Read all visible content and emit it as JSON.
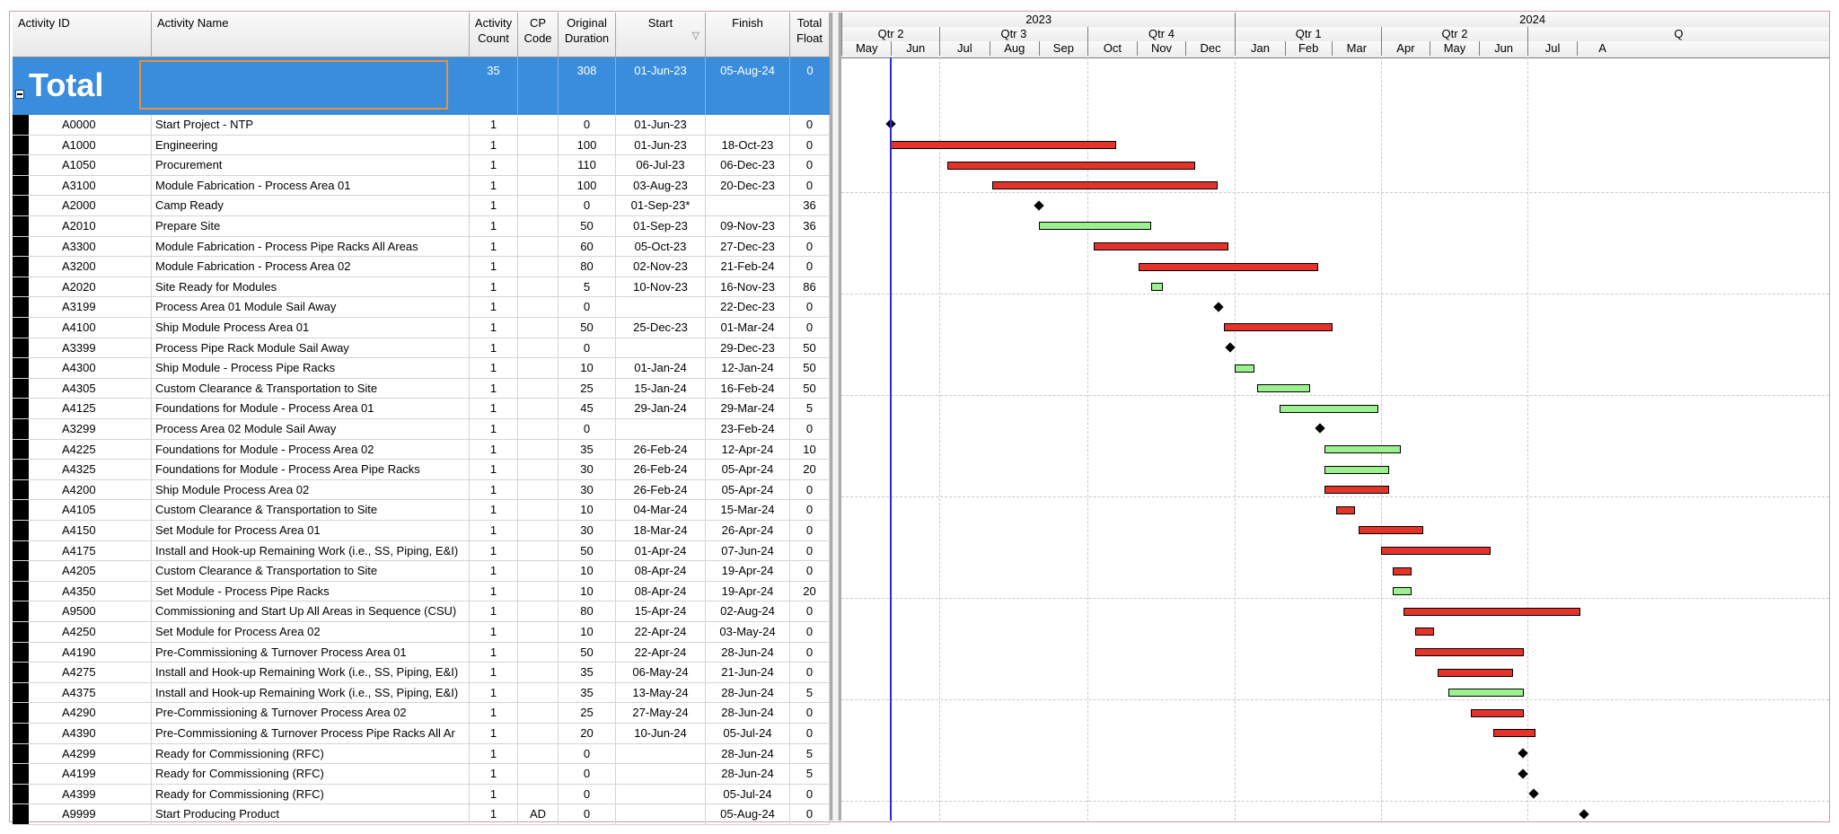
{
  "columns": {
    "id": "Activity ID",
    "name": "Activity Name",
    "count": "Activity Count",
    "cp": "CP Code",
    "duration": "Original Duration",
    "start": "Start",
    "finish": "Finish",
    "float": "Total Float",
    "start_sort_icon": "▽"
  },
  "total": {
    "label": "Total",
    "count": "35",
    "duration": "308",
    "start": "01-Jun-23",
    "finish": "05-Aug-24",
    "float": "0"
  },
  "rows": [
    {
      "id": "A0000",
      "name": "Start Project - NTP",
      "count": "1",
      "cp": "",
      "dur": "0",
      "start": "01-Jun-23",
      "finish": "",
      "float": "0"
    },
    {
      "id": "A1000",
      "name": "Engineering",
      "count": "1",
      "cp": "",
      "dur": "100",
      "start": "01-Jun-23",
      "finish": "18-Oct-23",
      "float": "0"
    },
    {
      "id": "A1050",
      "name": "Procurement",
      "count": "1",
      "cp": "",
      "dur": "110",
      "start": "06-Jul-23",
      "finish": "06-Dec-23",
      "float": "0"
    },
    {
      "id": "A3100",
      "name": "Module Fabrication - Process Area 01",
      "count": "1",
      "cp": "",
      "dur": "100",
      "start": "03-Aug-23",
      "finish": "20-Dec-23",
      "float": "0"
    },
    {
      "id": "A2000",
      "name": "Camp Ready",
      "count": "1",
      "cp": "",
      "dur": "0",
      "start": "01-Sep-23*",
      "finish": "",
      "float": "36"
    },
    {
      "id": "A2010",
      "name": "Prepare Site",
      "count": "1",
      "cp": "",
      "dur": "50",
      "start": "01-Sep-23",
      "finish": "09-Nov-23",
      "float": "36"
    },
    {
      "id": "A3300",
      "name": "Module Fabrication - Process Pipe Racks All Areas",
      "count": "1",
      "cp": "",
      "dur": "60",
      "start": "05-Oct-23",
      "finish": "27-Dec-23",
      "float": "0"
    },
    {
      "id": "A3200",
      "name": "Module Fabrication - Process Area 02",
      "count": "1",
      "cp": "",
      "dur": "80",
      "start": "02-Nov-23",
      "finish": "21-Feb-24",
      "float": "0"
    },
    {
      "id": "A2020",
      "name": "Site Ready for Modules",
      "count": "1",
      "cp": "",
      "dur": "5",
      "start": "10-Nov-23",
      "finish": "16-Nov-23",
      "float": "86"
    },
    {
      "id": "A3199",
      "name": "Process Area 01 Module Sail Away",
      "count": "1",
      "cp": "",
      "dur": "0",
      "start": "",
      "finish": "22-Dec-23",
      "float": "0"
    },
    {
      "id": "A4100",
      "name": "Ship Module Process Area 01",
      "count": "1",
      "cp": "",
      "dur": "50",
      "start": "25-Dec-23",
      "finish": "01-Mar-24",
      "float": "0"
    },
    {
      "id": "A3399",
      "name": "Process Pipe Rack Module Sail Away",
      "count": "1",
      "cp": "",
      "dur": "0",
      "start": "",
      "finish": "29-Dec-23",
      "float": "50"
    },
    {
      "id": "A4300",
      "name": "Ship Module - Process Pipe Racks",
      "count": "1",
      "cp": "",
      "dur": "10",
      "start": "01-Jan-24",
      "finish": "12-Jan-24",
      "float": "50"
    },
    {
      "id": "A4305",
      "name": "Custom Clearance & Transportation to Site",
      "count": "1",
      "cp": "",
      "dur": "25",
      "start": "15-Jan-24",
      "finish": "16-Feb-24",
      "float": "50"
    },
    {
      "id": "A4125",
      "name": "Foundations for Module - Process Area 01",
      "count": "1",
      "cp": "",
      "dur": "45",
      "start": "29-Jan-24",
      "finish": "29-Mar-24",
      "float": "5"
    },
    {
      "id": "A3299",
      "name": "Process Area 02 Module Sail Away",
      "count": "1",
      "cp": "",
      "dur": "0",
      "start": "",
      "finish": "23-Feb-24",
      "float": "0"
    },
    {
      "id": "A4225",
      "name": "Foundations for Module - Process Area 02",
      "count": "1",
      "cp": "",
      "dur": "35",
      "start": "26-Feb-24",
      "finish": "12-Apr-24",
      "float": "10"
    },
    {
      "id": "A4325",
      "name": "Foundations for Module - Process Area Pipe Racks",
      "count": "1",
      "cp": "",
      "dur": "30",
      "start": "26-Feb-24",
      "finish": "05-Apr-24",
      "float": "20"
    },
    {
      "id": "A4200",
      "name": "Ship Module Process Area 02",
      "count": "1",
      "cp": "",
      "dur": "30",
      "start": "26-Feb-24",
      "finish": "05-Apr-24",
      "float": "0"
    },
    {
      "id": "A4105",
      "name": "Custom Clearance & Transportation to Site",
      "count": "1",
      "cp": "",
      "dur": "10",
      "start": "04-Mar-24",
      "finish": "15-Mar-24",
      "float": "0"
    },
    {
      "id": "A4150",
      "name": "Set Module for Process Area 01",
      "count": "1",
      "cp": "",
      "dur": "30",
      "start": "18-Mar-24",
      "finish": "26-Apr-24",
      "float": "0"
    },
    {
      "id": "A4175",
      "name": "Install and Hook-up Remaining Work (i.e., SS, Piping, E&I)",
      "count": "1",
      "cp": "",
      "dur": "50",
      "start": "01-Apr-24",
      "finish": "07-Jun-24",
      "float": "0"
    },
    {
      "id": "A4205",
      "name": "Custom Clearance & Transportation to Site",
      "count": "1",
      "cp": "",
      "dur": "10",
      "start": "08-Apr-24",
      "finish": "19-Apr-24",
      "float": "0"
    },
    {
      "id": "A4350",
      "name": "Set Module - Process Pipe Racks",
      "count": "1",
      "cp": "",
      "dur": "10",
      "start": "08-Apr-24",
      "finish": "19-Apr-24",
      "float": "20"
    },
    {
      "id": "A9500",
      "name": "Commissioning and Start Up All Areas in Sequence (CSU)",
      "count": "1",
      "cp": "",
      "dur": "80",
      "start": "15-Apr-24",
      "finish": "02-Aug-24",
      "float": "0"
    },
    {
      "id": "A4250",
      "name": "Set Module for Process Area 02",
      "count": "1",
      "cp": "",
      "dur": "10",
      "start": "22-Apr-24",
      "finish": "03-May-24",
      "float": "0"
    },
    {
      "id": "A4190",
      "name": "Pre-Commissioning & Turnover Process Area 01",
      "count": "1",
      "cp": "",
      "dur": "50",
      "start": "22-Apr-24",
      "finish": "28-Jun-24",
      "float": "0"
    },
    {
      "id": "A4275",
      "name": "Install and Hook-up Remaining Work (i.e., SS, Piping, E&I)",
      "count": "1",
      "cp": "",
      "dur": "35",
      "start": "06-May-24",
      "finish": "21-Jun-24",
      "float": "0"
    },
    {
      "id": "A4375",
      "name": "Install and Hook-up Remaining Work (i.e., SS, Piping, E&I)",
      "count": "1",
      "cp": "",
      "dur": "35",
      "start": "13-May-24",
      "finish": "28-Jun-24",
      "float": "5"
    },
    {
      "id": "A4290",
      "name": "Pre-Commissioning & Turnover Process Area 02",
      "count": "1",
      "cp": "",
      "dur": "25",
      "start": "27-May-24",
      "finish": "28-Jun-24",
      "float": "0"
    },
    {
      "id": "A4390",
      "name": "Pre-Commissioning & Turnover Process Pipe Racks All Ar",
      "count": "1",
      "cp": "",
      "dur": "20",
      "start": "10-Jun-24",
      "finish": "05-Jul-24",
      "float": "0"
    },
    {
      "id": "A4299",
      "name": "Ready for Commissioning (RFC)",
      "count": "1",
      "cp": "",
      "dur": "0",
      "start": "",
      "finish": "28-Jun-24",
      "float": "5"
    },
    {
      "id": "A4199",
      "name": "Ready for Commissioning (RFC)",
      "count": "1",
      "cp": "",
      "dur": "0",
      "start": "",
      "finish": "28-Jun-24",
      "float": "5"
    },
    {
      "id": "A4399",
      "name": "Ready for Commissioning (RFC)",
      "count": "1",
      "cp": "",
      "dur": "0",
      "start": "",
      "finish": "05-Jul-24",
      "float": "0"
    },
    {
      "id": "A9999",
      "name": "Start Producing Product",
      "count": "1",
      "cp": "AD",
      "dur": "0",
      "start": "",
      "finish": "05-Aug-24",
      "float": "0"
    }
  ],
  "timescale": {
    "years": [
      "2023",
      "2024"
    ],
    "quarters": [
      "Qtr 2",
      "Qtr 3",
      "Qtr 4",
      "Qtr 1",
      "Qtr 2",
      "Q"
    ],
    "months": [
      "May",
      "Jun",
      "Jul",
      "Aug",
      "Sep",
      "Oct",
      "Nov",
      "Dec",
      "Jan",
      "Feb",
      "Mar",
      "Apr",
      "May",
      "Jun",
      "Jul",
      "A"
    ],
    "data_date": "01-Jun-23"
  },
  "colors": {
    "critical_bar": "#e3332a",
    "noncritical_bar": "#9bf08f",
    "selected_row": "#3a8ddc",
    "data_date_line": "#2a2adb"
  }
}
